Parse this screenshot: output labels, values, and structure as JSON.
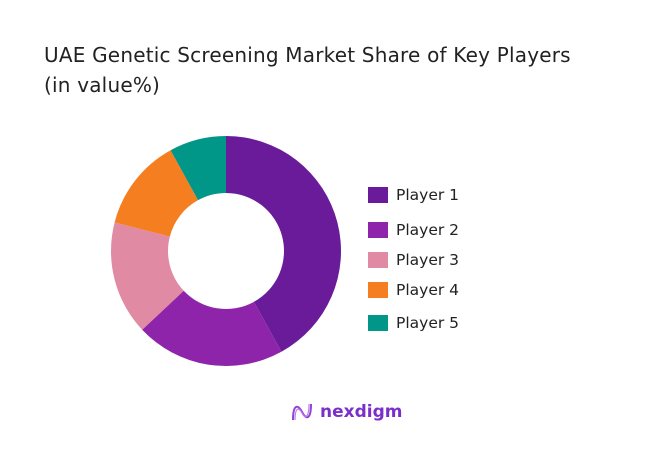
{
  "chart_data": {
    "type": "pie",
    "donut": true,
    "title": "UAE Genetic Screening Market Share of Key Players (in value%)",
    "title_lines": [
      "UAE Genetic Screening Market Share of Key Players",
      "(in value%)"
    ],
    "categories": [
      "Player 1",
      "Player 2",
      "Player 3",
      "Player 4",
      "Player 5"
    ],
    "values": [
      42,
      21,
      16,
      13,
      8
    ],
    "colors": [
      "#6a1b9a",
      "#8e24aa",
      "#e08aa3",
      "#f57f20",
      "#009688"
    ],
    "legend_position": "right"
  },
  "logo": {
    "text": "nexdigm",
    "color": "#7b2fc9"
  }
}
